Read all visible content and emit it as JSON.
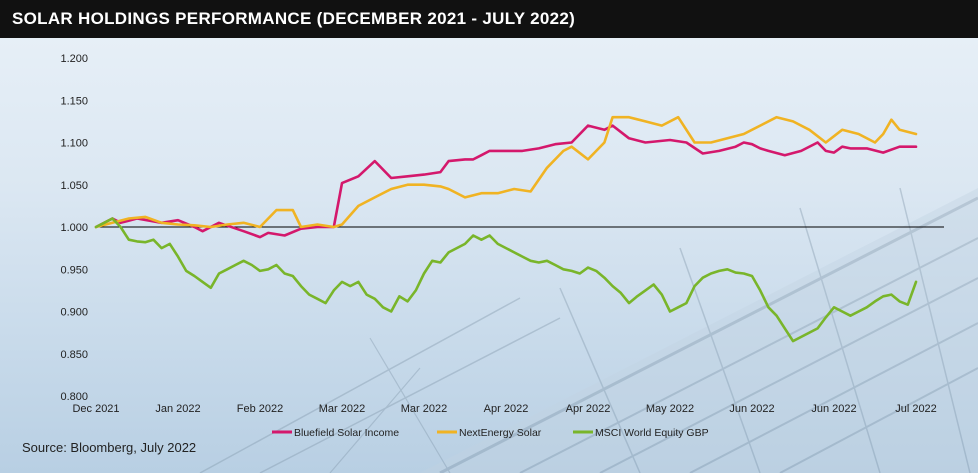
{
  "header": {
    "title": "SOLAR HOLDINGS PERFORMANCE (DECEMBER 2021 - JULY 2022)"
  },
  "footer": {
    "source": "Source: Bloomberg, July 2022"
  },
  "colors": {
    "title_bg": "#111111",
    "bluefield": "#d4186c",
    "nextenergy": "#f0b323",
    "msci": "#79b52a",
    "baseline": "#000000"
  },
  "chart_data": {
    "type": "line",
    "title": "SOLAR HOLDINGS PERFORMANCE (DECEMBER 2021 - JULY 2022)",
    "x_tick_labels": [
      "Dec 2021",
      "Jan 2022",
      "Feb 2022",
      "Mar 2022",
      "Mar 2022",
      "Apr 2022",
      "Apr 2022",
      "May 2022",
      "Jun 2022",
      "Jun 2022",
      "Jul 2022"
    ],
    "y_tick_labels": [
      "0.800",
      "0.850",
      "0.900",
      "0.950",
      "1.000",
      "1.050",
      "1.100",
      "1.150",
      "1.200"
    ],
    "ylim": [
      0.8,
      1.2
    ],
    "xlim": [
      0,
      100
    ],
    "reference_line": 1.0,
    "grid": false,
    "legend_position": "bottom",
    "series": [
      {
        "name": "Bluefield Solar Income",
        "color": "#d4186c",
        "x": [
          0,
          2,
          3,
          5,
          8,
          10,
          12,
          13,
          15,
          18,
          20,
          21,
          23,
          25,
          27,
          29,
          30,
          32,
          34,
          36,
          38,
          40,
          42,
          43,
          45,
          46,
          47,
          48,
          50,
          52,
          54,
          56,
          58,
          60,
          62,
          63,
          65,
          67,
          70,
          72,
          74,
          76,
          78,
          79,
          80,
          81,
          82,
          84,
          86,
          88,
          89,
          90,
          91,
          92,
          94,
          96,
          98,
          100
        ],
        "y": [
          1.0,
          1.01,
          1.005,
          1.01,
          1.005,
          1.008,
          1.0,
          0.995,
          1.005,
          0.995,
          0.988,
          0.993,
          0.99,
          0.998,
          1.0,
          1.0,
          1.052,
          1.06,
          1.078,
          1.058,
          1.06,
          1.062,
          1.065,
          1.078,
          1.08,
          1.08,
          1.085,
          1.09,
          1.09,
          1.09,
          1.093,
          1.098,
          1.1,
          1.12,
          1.115,
          1.12,
          1.105,
          1.1,
          1.103,
          1.1,
          1.087,
          1.09,
          1.095,
          1.1,
          1.098,
          1.093,
          1.09,
          1.085,
          1.09,
          1.1,
          1.09,
          1.088,
          1.095,
          1.093,
          1.093,
          1.088,
          1.095,
          1.095
        ]
      },
      {
        "name": "NextEnergy Solar",
        "color": "#f0b323",
        "x": [
          0,
          2,
          4,
          6,
          8,
          10,
          12,
          14,
          16,
          18,
          20,
          22,
          24,
          25,
          27,
          29,
          30,
          32,
          34,
          36,
          38,
          40,
          42,
          43,
          45,
          47,
          49,
          51,
          53,
          55,
          57,
          58,
          60,
          62,
          63,
          65,
          67,
          69,
          71,
          73,
          75,
          77,
          79,
          81,
          83,
          85,
          87,
          89,
          91,
          93,
          95,
          96,
          97,
          98,
          100
        ],
        "y": [
          1.0,
          1.005,
          1.01,
          1.012,
          1.005,
          1.003,
          1.002,
          1.0,
          1.003,
          1.005,
          1.0,
          1.02,
          1.02,
          1.0,
          1.003,
          1.0,
          1.003,
          1.025,
          1.035,
          1.045,
          1.05,
          1.05,
          1.048,
          1.045,
          1.035,
          1.04,
          1.04,
          1.045,
          1.042,
          1.07,
          1.09,
          1.095,
          1.08,
          1.1,
          1.13,
          1.13,
          1.125,
          1.12,
          1.13,
          1.1,
          1.1,
          1.105,
          1.11,
          1.12,
          1.13,
          1.125,
          1.115,
          1.1,
          1.115,
          1.11,
          1.1,
          1.11,
          1.127,
          1.115,
          1.11
        ]
      },
      {
        "name": "MSCI World Equity GBP",
        "color": "#79b52a",
        "x": [
          0,
          1,
          2,
          3,
          4,
          5,
          6,
          7,
          8,
          9,
          10,
          11,
          12,
          13,
          14,
          15,
          16,
          17,
          18,
          19,
          20,
          21,
          22,
          23,
          24,
          25,
          26,
          27,
          28,
          29,
          30,
          31,
          32,
          33,
          34,
          35,
          36,
          37,
          38,
          39,
          40,
          41,
          42,
          43,
          44,
          45,
          46,
          47,
          48,
          49,
          50,
          51,
          52,
          53,
          54,
          55,
          56,
          57,
          58,
          59,
          60,
          61,
          62,
          63,
          64,
          65,
          66,
          67,
          68,
          69,
          70,
          71,
          72,
          73,
          74,
          75,
          76,
          77,
          78,
          79,
          80,
          81,
          82,
          83,
          84,
          85,
          86,
          87,
          88,
          89,
          90,
          91,
          92,
          93,
          94,
          95,
          96,
          97,
          98,
          99,
          100
        ],
        "y": [
          1.0,
          1.005,
          1.01,
          1.0,
          0.985,
          0.983,
          0.982,
          0.985,
          0.975,
          0.98,
          0.965,
          0.948,
          0.942,
          0.935,
          0.928,
          0.945,
          0.95,
          0.955,
          0.96,
          0.955,
          0.948,
          0.95,
          0.955,
          0.945,
          0.942,
          0.93,
          0.92,
          0.915,
          0.91,
          0.925,
          0.935,
          0.93,
          0.935,
          0.92,
          0.915,
          0.905,
          0.9,
          0.918,
          0.912,
          0.925,
          0.945,
          0.96,
          0.958,
          0.97,
          0.975,
          0.98,
          0.99,
          0.985,
          0.99,
          0.98,
          0.975,
          0.97,
          0.965,
          0.96,
          0.958,
          0.96,
          0.955,
          0.95,
          0.948,
          0.945,
          0.952,
          0.948,
          0.94,
          0.93,
          0.922,
          0.91,
          0.918,
          0.925,
          0.932,
          0.92,
          0.9,
          0.905,
          0.91,
          0.93,
          0.94,
          0.945,
          0.948,
          0.95,
          0.946,
          0.945,
          0.942,
          0.925,
          0.905,
          0.895,
          0.88,
          0.865,
          0.87,
          0.875,
          0.88,
          0.893,
          0.905,
          0.9,
          0.895,
          0.9,
          0.905,
          0.912,
          0.918,
          0.92,
          0.912,
          0.908,
          0.935
        ]
      }
    ]
  }
}
